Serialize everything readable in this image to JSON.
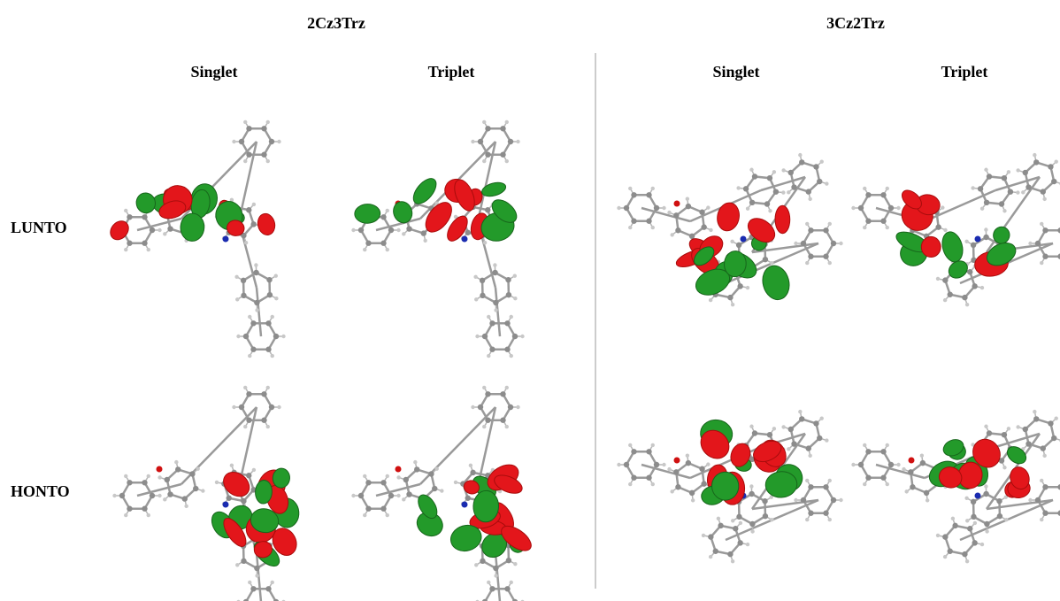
{
  "groups": [
    {
      "title": "2Cz3Trz",
      "columns": [
        "Singlet",
        "Triplet"
      ]
    },
    {
      "title": "3Cz2Trz",
      "columns": [
        "Singlet",
        "Triplet"
      ]
    }
  ],
  "rows": [
    "LUNTO",
    "HONTO"
  ]
}
